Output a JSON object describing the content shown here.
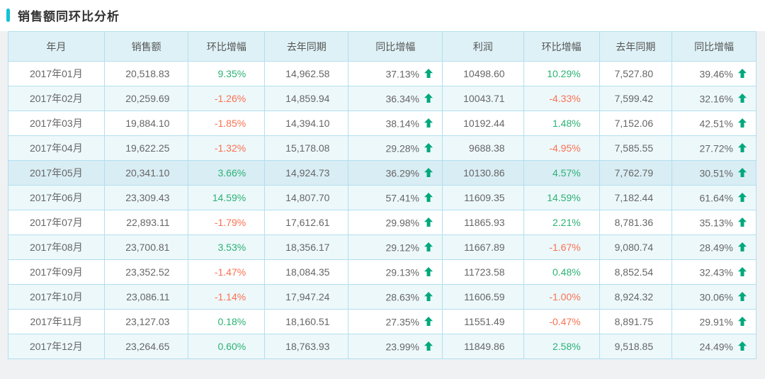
{
  "page": {
    "title": "销售额同环比分析"
  },
  "colors": {
    "accent_bar": "#13c2d6",
    "positive": "#2bb273",
    "negative": "#fa7150",
    "up_arrow": "#00a87c",
    "header_bg": "#def1f6",
    "alt_row_bg": "#edf8fb",
    "highlight_row_bg": "#d9edf4",
    "border": "#b2dfee"
  },
  "table": {
    "headers": [
      "年月",
      "销售额",
      "环比增幅",
      "去年同期",
      "同比增幅",
      "利润",
      "环比增幅",
      "去年同期",
      "同比增幅"
    ],
    "rows": [
      {
        "month": "2017年01月",
        "sales": "20,518.83",
        "sales_mom": "9.35%",
        "sales_ly": "14,962.58",
        "sales_yoy": "37.13%",
        "profit": "10498.60",
        "profit_mom": "10.29%",
        "profit_ly": "7,527.80",
        "profit_yoy": "39.46%",
        "highlighted": false
      },
      {
        "month": "2017年02月",
        "sales": "20,259.69",
        "sales_mom": "-1.26%",
        "sales_ly": "14,859.94",
        "sales_yoy": "36.34%",
        "profit": "10043.71",
        "profit_mom": "-4.33%",
        "profit_ly": "7,599.42",
        "profit_yoy": "32.16%",
        "highlighted": false
      },
      {
        "month": "2017年03月",
        "sales": "19,884.10",
        "sales_mom": "-1.85%",
        "sales_ly": "14,394.10",
        "sales_yoy": "38.14%",
        "profit": "10192.44",
        "profit_mom": "1.48%",
        "profit_ly": "7,152.06",
        "profit_yoy": "42.51%",
        "highlighted": false
      },
      {
        "month": "2017年04月",
        "sales": "19,622.25",
        "sales_mom": "-1.32%",
        "sales_ly": "15,178.08",
        "sales_yoy": "29.28%",
        "profit": "9688.38",
        "profit_mom": "-4.95%",
        "profit_ly": "7,585.55",
        "profit_yoy": "27.72%",
        "highlighted": false
      },
      {
        "month": "2017年05月",
        "sales": "20,341.10",
        "sales_mom": "3.66%",
        "sales_ly": "14,924.73",
        "sales_yoy": "36.29%",
        "profit": "10130.86",
        "profit_mom": "4.57%",
        "profit_ly": "7,762.79",
        "profit_yoy": "30.51%",
        "highlighted": true
      },
      {
        "month": "2017年06月",
        "sales": "23,309.43",
        "sales_mom": "14.59%",
        "sales_ly": "14,807.70",
        "sales_yoy": "57.41%",
        "profit": "11609.35",
        "profit_mom": "14.59%",
        "profit_ly": "7,182.44",
        "profit_yoy": "61.64%",
        "highlighted": false
      },
      {
        "month": "2017年07月",
        "sales": "22,893.11",
        "sales_mom": "-1.79%",
        "sales_ly": "17,612.61",
        "sales_yoy": "29.98%",
        "profit": "11865.93",
        "profit_mom": "2.21%",
        "profit_ly": "8,781.36",
        "profit_yoy": "35.13%",
        "highlighted": false
      },
      {
        "month": "2017年08月",
        "sales": "23,700.81",
        "sales_mom": "3.53%",
        "sales_ly": "18,356.17",
        "sales_yoy": "29.12%",
        "profit": "11667.89",
        "profit_mom": "-1.67%",
        "profit_ly": "9,080.74",
        "profit_yoy": "28.49%",
        "highlighted": false
      },
      {
        "month": "2017年09月",
        "sales": "23,352.52",
        "sales_mom": "-1.47%",
        "sales_ly": "18,084.35",
        "sales_yoy": "29.13%",
        "profit": "11723.58",
        "profit_mom": "0.48%",
        "profit_ly": "8,852.54",
        "profit_yoy": "32.43%",
        "highlighted": false
      },
      {
        "month": "2017年10月",
        "sales": "23,086.11",
        "sales_mom": "-1.14%",
        "sales_ly": "17,947.24",
        "sales_yoy": "28.63%",
        "profit": "11606.59",
        "profit_mom": "-1.00%",
        "profit_ly": "8,924.32",
        "profit_yoy": "30.06%",
        "highlighted": false
      },
      {
        "month": "2017年11月",
        "sales": "23,127.03",
        "sales_mom": "0.18%",
        "sales_ly": "18,160.51",
        "sales_yoy": "27.35%",
        "profit": "11551.49",
        "profit_mom": "-0.47%",
        "profit_ly": "8,891.75",
        "profit_yoy": "29.91%",
        "highlighted": false
      },
      {
        "month": "2017年12月",
        "sales": "23,264.65",
        "sales_mom": "0.60%",
        "sales_ly": "18,763.93",
        "sales_yoy": "23.99%",
        "profit": "11849.86",
        "profit_mom": "2.58%",
        "profit_ly": "9,518.85",
        "profit_yoy": "24.49%",
        "highlighted": false
      }
    ]
  }
}
